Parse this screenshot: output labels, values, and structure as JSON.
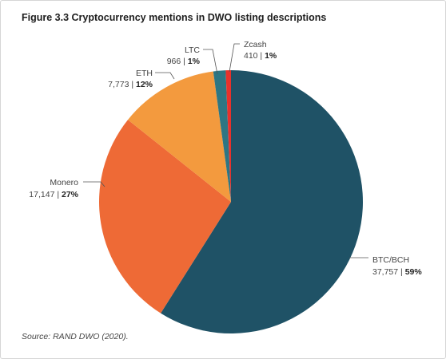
{
  "title": "Figure 3.3 Cryptocurrency mentions in DWO listing descriptions",
  "source": "Source: RAND DWO (2020).",
  "chart_data": {
    "type": "pie",
    "title": "Figure 3.3 Cryptocurrency mentions in DWO listing descriptions",
    "slices": [
      {
        "name": "BTC/BCH",
        "value_text": "37,757",
        "value": 37757,
        "percent_text": "59%",
        "color": "#1f5266"
      },
      {
        "name": "Monero",
        "value_text": "17,147",
        "value": 17147,
        "percent_text": "27%",
        "color": "#ee6a36"
      },
      {
        "name": "ETH",
        "value_text": "7,773",
        "value": 7773,
        "percent_text": "12%",
        "color": "#f39a3e"
      },
      {
        "name": "LTC",
        "value_text": "966",
        "value": 966,
        "percent_text": "1%",
        "color": "#2d7683"
      },
      {
        "name": "Zcash",
        "value_text": "410",
        "value": 410,
        "percent_text": "1%",
        "color": "#e8312b"
      }
    ],
    "separator": "|"
  }
}
